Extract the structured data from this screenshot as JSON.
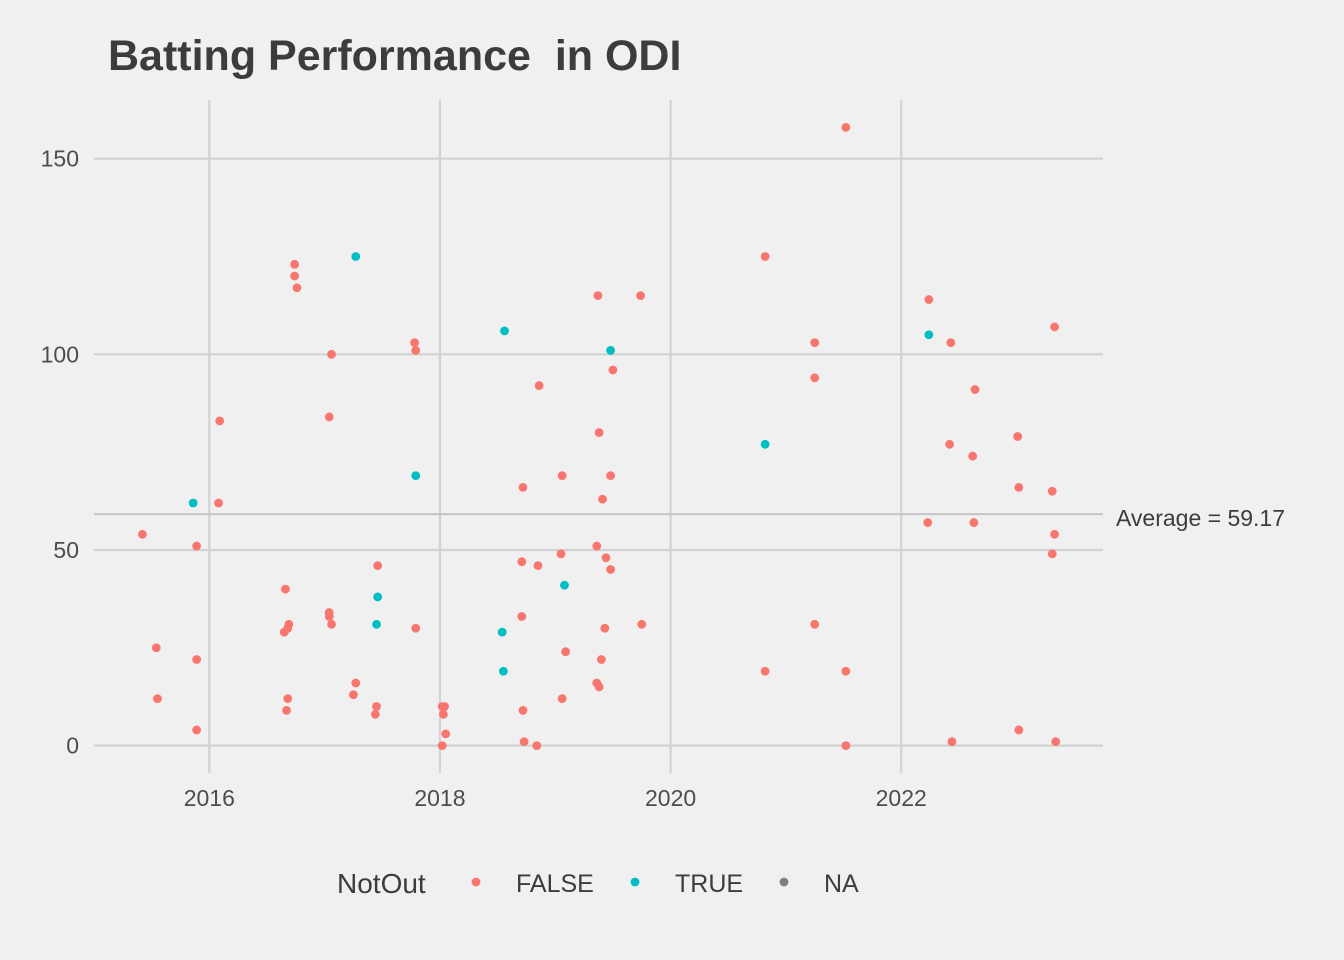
{
  "chart_data": {
    "type": "scatter",
    "title": "Batting Performance  in ODI",
    "xlabel": "",
    "ylabel": "",
    "xlim": [
      2015.0,
      2023.75
    ],
    "ylim": [
      -7,
      165
    ],
    "x_ticks": [
      2016,
      2018,
      2020,
      2022
    ],
    "y_ticks": [
      0,
      50,
      100,
      150
    ],
    "grid": true,
    "legend": {
      "title": "NotOut",
      "placement": "bottom",
      "entries": [
        {
          "label": "FALSE",
          "color": "#F8766D"
        },
        {
          "label": "TRUE",
          "color": "#00BFC4"
        },
        {
          "label": "NA",
          "color": "#7F7F7F"
        }
      ]
    },
    "hline": {
      "value": 59.17,
      "label": "Average = 59.17"
    },
    "series": [
      {
        "name": "FALSE",
        "color": "#F8766D",
        "points": [
          [
            2015.42,
            54
          ],
          [
            2015.54,
            25
          ],
          [
            2015.55,
            12
          ],
          [
            2015.89,
            51
          ],
          [
            2015.89,
            22
          ],
          [
            2015.89,
            4
          ],
          [
            2016.08,
            62
          ],
          [
            2016.09,
            83
          ],
          [
            2016.65,
            29
          ],
          [
            2016.66,
            40
          ],
          [
            2016.68,
            30
          ],
          [
            2016.69,
            31
          ],
          [
            2016.68,
            12
          ],
          [
            2016.67,
            9
          ],
          [
            2016.74,
            123
          ],
          [
            2016.74,
            120
          ],
          [
            2016.76,
            117
          ],
          [
            2017.04,
            34
          ],
          [
            2017.04,
            33
          ],
          [
            2017.06,
            31
          ],
          [
            2017.06,
            100
          ],
          [
            2017.04,
            84
          ],
          [
            2017.27,
            16
          ],
          [
            2017.25,
            13
          ],
          [
            2017.46,
            46
          ],
          [
            2017.45,
            10
          ],
          [
            2017.44,
            8
          ],
          [
            2017.78,
            103
          ],
          [
            2017.79,
            101
          ],
          [
            2017.79,
            30
          ],
          [
            2018.02,
            10
          ],
          [
            2018.04,
            10
          ],
          [
            2018.03,
            8
          ],
          [
            2018.05,
            3
          ],
          [
            2018.02,
            0
          ],
          [
            2018.72,
            66
          ],
          [
            2018.71,
            47
          ],
          [
            2018.71,
            33
          ],
          [
            2018.72,
            9
          ],
          [
            2018.73,
            1
          ],
          [
            2018.86,
            92
          ],
          [
            2018.85,
            46
          ],
          [
            2018.84,
            0
          ],
          [
            2019.06,
            69
          ],
          [
            2019.05,
            49
          ],
          [
            2019.09,
            24
          ],
          [
            2019.06,
            12
          ],
          [
            2019.37,
            115
          ],
          [
            2019.38,
            80
          ],
          [
            2019.41,
            63
          ],
          [
            2019.36,
            51
          ],
          [
            2019.44,
            48
          ],
          [
            2019.48,
            45
          ],
          [
            2019.43,
            30
          ],
          [
            2019.4,
            22
          ],
          [
            2019.36,
            16
          ],
          [
            2019.38,
            15
          ],
          [
            2019.48,
            69
          ],
          [
            2019.5,
            96
          ],
          [
            2019.74,
            115
          ],
          [
            2019.75,
            31
          ],
          [
            2020.82,
            125
          ],
          [
            2020.82,
            19
          ],
          [
            2021.25,
            103
          ],
          [
            2021.25,
            94
          ],
          [
            2021.25,
            31
          ],
          [
            2021.52,
            158
          ],
          [
            2021.52,
            19
          ],
          [
            2021.52,
            0
          ],
          [
            2022.24,
            114
          ],
          [
            2022.23,
            57
          ],
          [
            2022.43,
            103
          ],
          [
            2022.42,
            77
          ],
          [
            2022.44,
            1
          ],
          [
            2022.64,
            91
          ],
          [
            2022.62,
            74
          ],
          [
            2022.63,
            57
          ],
          [
            2023.01,
            79
          ],
          [
            2023.02,
            66
          ],
          [
            2023.02,
            4
          ],
          [
            2023.33,
            107
          ],
          [
            2023.31,
            65
          ],
          [
            2023.33,
            54
          ],
          [
            2023.31,
            49
          ],
          [
            2023.34,
            1
          ]
        ]
      },
      {
        "name": "TRUE",
        "color": "#00BFC4",
        "points": [
          [
            2015.86,
            62
          ],
          [
            2017.27,
            125
          ],
          [
            2017.46,
            38
          ],
          [
            2017.45,
            31
          ],
          [
            2017.79,
            69
          ],
          [
            2018.56,
            106
          ],
          [
            2018.54,
            29
          ],
          [
            2018.55,
            19
          ],
          [
            2019.08,
            41
          ],
          [
            2019.48,
            101
          ],
          [
            2020.82,
            77
          ],
          [
            2022.24,
            105
          ]
        ]
      },
      {
        "name": "NA",
        "color": "#7F7F7F",
        "points": []
      }
    ]
  }
}
